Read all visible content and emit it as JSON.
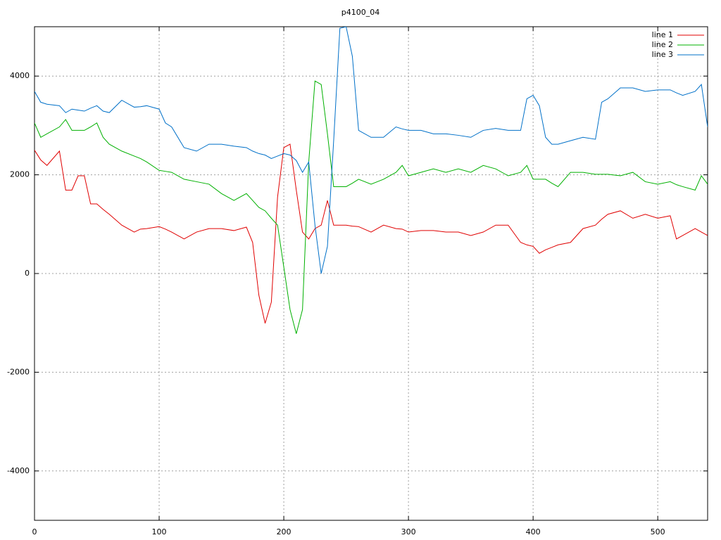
{
  "chart_data": {
    "type": "line",
    "title": "p4100_04",
    "x": [
      0,
      5,
      10,
      20,
      25,
      30,
      35,
      40,
      45,
      50,
      55,
      60,
      70,
      80,
      85,
      90,
      100,
      105,
      110,
      120,
      130,
      140,
      150,
      160,
      170,
      175,
      180,
      185,
      190,
      195,
      200,
      205,
      210,
      215,
      220,
      225,
      230,
      235,
      240,
      245,
      250,
      255,
      260,
      270,
      280,
      290,
      295,
      300,
      310,
      320,
      330,
      340,
      350,
      360,
      370,
      380,
      390,
      395,
      400,
      405,
      410,
      415,
      420,
      430,
      440,
      450,
      455,
      460,
      470,
      480,
      490,
      500,
      510,
      515,
      520,
      530,
      535,
      540
    ],
    "series": [
      {
        "name": "line 1",
        "color": "#e00000",
        "values": [
          2500,
          2300,
          2190,
          2480,
          1690,
          1690,
          1980,
          1980,
          1410,
          1410,
          1300,
          1200,
          980,
          840,
          900,
          910,
          950,
          900,
          840,
          700,
          840,
          910,
          910,
          870,
          940,
          630,
          -440,
          -1010,
          -580,
          1550,
          2550,
          2620,
          1690,
          840,
          700,
          910,
          980,
          1480,
          980,
          980,
          980,
          960,
          950,
          840,
          980,
          910,
          900,
          840,
          870,
          870,
          840,
          840,
          770,
          840,
          980,
          980,
          630,
          580,
          550,
          410,
          480,
          530,
          580,
          630,
          910,
          980,
          1100,
          1200,
          1270,
          1120,
          1200,
          1120,
          1170,
          700,
          770,
          910,
          840,
          770
        ]
      },
      {
        "name": "line 2",
        "color": "#00b000",
        "values": [
          3050,
          2760,
          2830,
          2970,
          3120,
          2900,
          2900,
          2900,
          2970,
          3050,
          2760,
          2620,
          2480,
          2380,
          2330,
          2260,
          2090,
          2070,
          2050,
          1910,
          1860,
          1810,
          1620,
          1480,
          1620,
          1480,
          1340,
          1270,
          1120,
          980,
          130,
          -730,
          -1220,
          -730,
          2260,
          3900,
          3830,
          2830,
          1760,
          1760,
          1760,
          1830,
          1910,
          1810,
          1910,
          2050,
          2190,
          1980,
          2050,
          2120,
          2050,
          2120,
          2050,
          2190,
          2120,
          1980,
          2050,
          2190,
          1910,
          1910,
          1910,
          1830,
          1760,
          2050,
          2050,
          2010,
          2010,
          2010,
          1980,
          2050,
          1860,
          1810,
          1860,
          1800,
          1760,
          1690,
          1980,
          1810
        ]
      },
      {
        "name": "line 3",
        "color": "#0070c8",
        "values": [
          3690,
          3470,
          3430,
          3400,
          3260,
          3330,
          3310,
          3290,
          3350,
          3400,
          3290,
          3260,
          3510,
          3370,
          3380,
          3400,
          3330,
          3050,
          2970,
          2550,
          2480,
          2620,
          2620,
          2580,
          2550,
          2480,
          2430,
          2400,
          2330,
          2380,
          2430,
          2400,
          2290,
          2050,
          2260,
          980,
          0,
          550,
          2690,
          4970,
          5000,
          4400,
          2900,
          2760,
          2760,
          2970,
          2930,
          2900,
          2900,
          2830,
          2830,
          2800,
          2760,
          2900,
          2940,
          2900,
          2900,
          3540,
          3610,
          3400,
          2760,
          2620,
          2620,
          2690,
          2760,
          2720,
          3470,
          3540,
          3760,
          3760,
          3690,
          3720,
          3720,
          3660,
          3610,
          3690,
          3830,
          2970
        ]
      }
    ],
    "xlim": [
      0,
      540
    ],
    "xticks": [
      0,
      100,
      200,
      300,
      400,
      500
    ],
    "ylim": [
      -5000,
      5000
    ],
    "yticks": [
      -4000,
      -2000,
      0,
      2000,
      4000
    ],
    "grid": true,
    "legend": "top-right"
  }
}
